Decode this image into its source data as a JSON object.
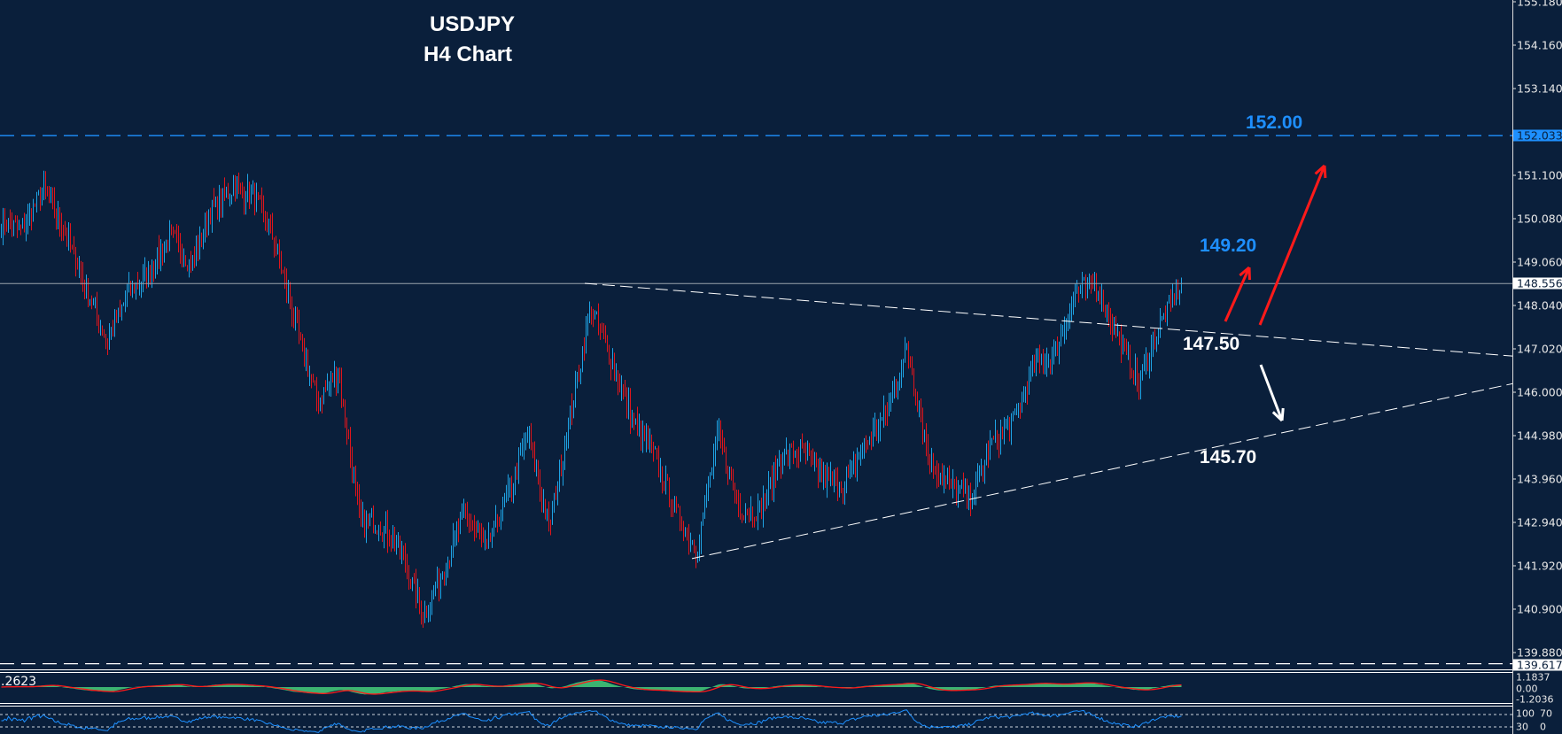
{
  "chart_data": {
    "type": "bar",
    "title": "USDJPY",
    "subtitle": "H4 Chart",
    "bar_colors": {
      "up": "#1fa3e4",
      "down": "#e0151b"
    },
    "background": "#0a1f3b",
    "y_ticks": [
      "155.180",
      "154.160",
      "153.140",
      "152.120",
      "151.100",
      "150.080",
      "149.060",
      "148.040",
      "147.020",
      "146.000",
      "144.980",
      "143.960",
      "142.940",
      "141.920",
      "140.900",
      "139.880"
    ],
    "ylim": [
      139.5,
      155.2
    ],
    "approx_close_path": [
      150.0,
      149.8,
      150.8,
      149.8,
      148.5,
      147.2,
      148.3,
      148.8,
      149.7,
      149.0,
      150.3,
      150.8,
      150.6,
      149.5,
      147.5,
      145.8,
      146.5,
      143.0,
      142.9,
      142.2,
      140.8,
      141.8,
      143.2,
      142.3,
      143.5,
      145.0,
      142.8,
      145.5,
      148.0,
      146.7,
      145.3,
      144.5,
      143.2,
      142.3,
      145.0,
      143.3,
      143.2,
      144.5,
      144.6,
      144.0,
      143.8,
      144.8,
      145.5,
      147.0,
      144.5,
      143.8,
      143.5,
      144.8,
      145.3,
      146.6,
      146.9,
      148.4,
      148.5,
      147.3,
      146.2,
      147.6,
      148.556
    ],
    "last_price": {
      "label": "148.556",
      "value": 148.556,
      "color": "#ffffff"
    },
    "levels": [
      {
        "label": "152.033",
        "value": 152.033,
        "color": "#1e90ff",
        "style": "dashed"
      },
      {
        "label": "139.617",
        "value": 139.617,
        "color": "#ffffff",
        "style": "dashed"
      }
    ],
    "trendlines": [
      {
        "name": "upper",
        "from_price": 148.56,
        "to_price": 146.85,
        "style": "dashed",
        "color": "#ffffff"
      },
      {
        "name": "lower",
        "from_price": 142.09,
        "to_price": 146.2,
        "style": "dashed",
        "color": "#ffffff"
      }
    ],
    "annotations": [
      {
        "text": "152.00",
        "color": "#1e8fff"
      },
      {
        "text": "149.20",
        "color": "#1e8fff"
      },
      {
        "text": "147.50",
        "color": "#ffffff"
      },
      {
        "text": "145.70",
        "color": "#ffffff"
      }
    ],
    "arrows": [
      {
        "direction": "up",
        "target": "149.20",
        "color": "#ff1a1a"
      },
      {
        "direction": "up",
        "target": "152.00",
        "color": "#ff1a1a"
      },
      {
        "direction": "down",
        "target": "145.70",
        "color": "#ffffff"
      }
    ],
    "macd": {
      "current_label": ".2623",
      "max_label": "1.1837",
      "zero_label": "0.00",
      "min_label": "-1.2036",
      "histogram_color": "#3cb371",
      "signal_color": "#ff1a1a"
    },
    "rsi": {
      "labels": [
        "100",
        "70",
        "30",
        "0"
      ],
      "levels": [
        70,
        30
      ],
      "line_color": "#1e90ff"
    }
  }
}
